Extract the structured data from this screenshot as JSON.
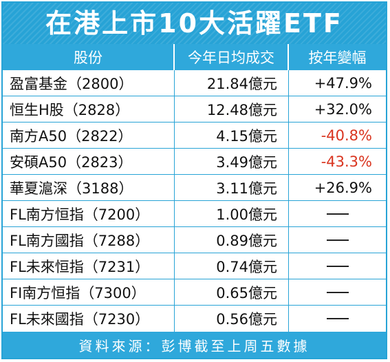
{
  "title": "在港上市10大活躍ETF",
  "headers": {
    "stock": "股份",
    "turnover": "今年日均成交",
    "change": "按年變幅"
  },
  "rows": [
    {
      "name": "盈富基金（2800）",
      "turnover": "21.84億元",
      "change": "+47.9%",
      "negative": false
    },
    {
      "name": "恒生H股（2828）",
      "turnover": "12.48億元",
      "change": "+32.0%",
      "negative": false
    },
    {
      "name": "南方A50（2822）",
      "turnover": "4.15億元",
      "change": "-40.8%",
      "negative": true
    },
    {
      "name": "安碩A50（2823）",
      "turnover": "3.49億元",
      "change": "-43.3%",
      "negative": true
    },
    {
      "name": "華夏滬深（3188）",
      "turnover": "3.11億元",
      "change": "+26.9%",
      "negative": false
    },
    {
      "name": "FL南方恒指（7200）",
      "turnover": "1.00億元",
      "change": null,
      "negative": false
    },
    {
      "name": "FL南方國指（7288）",
      "turnover": "0.89億元",
      "change": null,
      "negative": false
    },
    {
      "name": "FL未來恒指（7231）",
      "turnover": "0.74億元",
      "change": null,
      "negative": false
    },
    {
      "name": "FI南方恒指（7300）",
      "turnover": "0.65億元",
      "change": null,
      "negative": false
    },
    {
      "name": "FL未來國指（7230）",
      "turnover": "0.56億元",
      "change": null,
      "negative": false
    }
  ],
  "footer": "資料來源：彭博截至上周五數據",
  "colors": {
    "accent": "#27a3d6",
    "negative": "#d9341f"
  }
}
